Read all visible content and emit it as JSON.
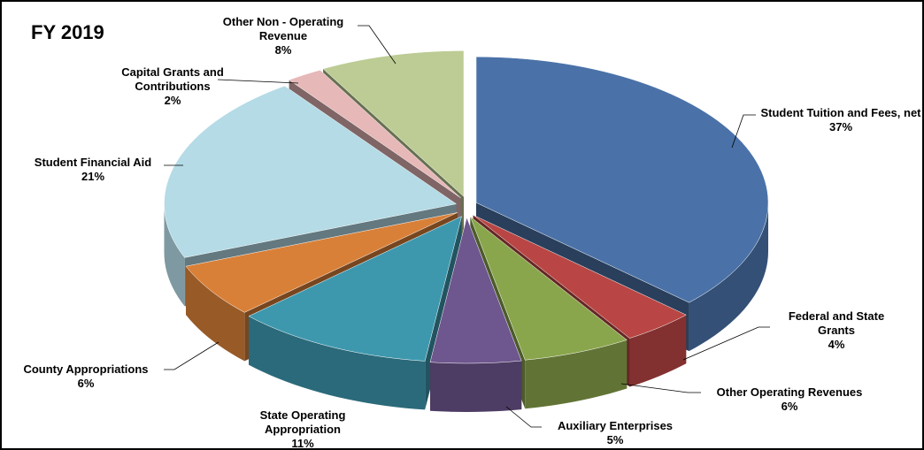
{
  "chart_data": {
    "type": "pie3d",
    "title": "FY 2019",
    "categories": [
      "Student Tuition and Fees, net",
      "Federal and State Grants",
      "Other Operating Revenues",
      "Auxiliary Enterprises",
      "State Operating Appropriation",
      "County Appropriations",
      "Student Financial Aid",
      "Capital Grants and Contributions",
      "Other Non - Operating Revenue"
    ],
    "values": [
      37,
      4,
      6,
      5,
      11,
      6,
      21,
      2,
      8
    ],
    "value_labels": [
      "37%",
      "4%",
      "6%",
      "5%",
      "11%",
      "6%",
      "21%",
      "2%",
      "8%"
    ],
    "colors": [
      "#4a72a8",
      "#b94644",
      "#8aa64c",
      "#6e568e",
      "#3d98ae",
      "#d98038",
      "#b4dbe6",
      "#e6b8b8",
      "#bccc94"
    ]
  }
}
